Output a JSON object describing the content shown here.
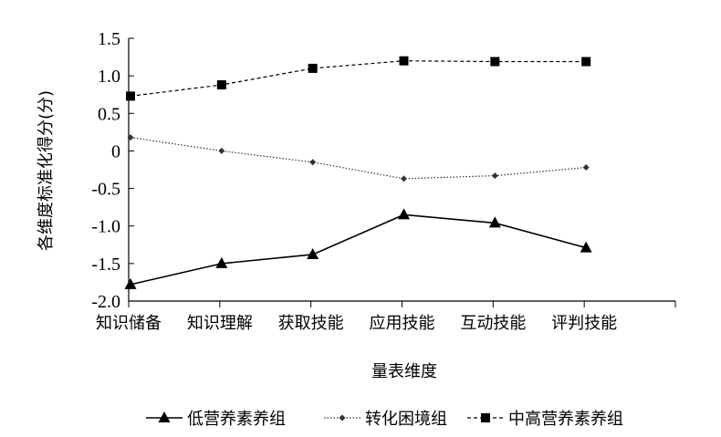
{
  "chart_data": {
    "type": "line",
    "categories": [
      "知识储备",
      "知识理解",
      "获取技能",
      "应用技能",
      "互动技能",
      "评判技能"
    ],
    "ylabel": "各维度标准化得分(分)",
    "xlabel": "量表维度",
    "ylim": [
      -2.0,
      1.5
    ],
    "yticks": [
      1.5,
      1.0,
      0.5,
      0,
      -0.5,
      -1.0,
      -1.5,
      -2.0
    ],
    "ytick_labels": [
      "1.5",
      "1.0",
      "0.5",
      "0",
      "-0.5",
      "-1.0",
      "-1.5",
      "-2.0"
    ],
    "grid": false,
    "legend_position": "bottom",
    "series": [
      {
        "name": "低营养素养组",
        "marker": "triangle",
        "line": "solid",
        "color": "#000000",
        "values": [
          -1.78,
          -1.5,
          -1.38,
          -0.85,
          -0.96,
          -1.29
        ]
      },
      {
        "name": "转化困境组",
        "marker": "diamond",
        "line": "dotted",
        "color": "#333333",
        "values": [
          0.18,
          0.0,
          -0.15,
          -0.37,
          -0.33,
          -0.22
        ]
      },
      {
        "name": "中高营养素养组",
        "marker": "square",
        "line": "dashed",
        "color": "#000000",
        "values": [
          0.73,
          0.88,
          1.1,
          1.2,
          1.19,
          1.19
        ]
      }
    ]
  }
}
